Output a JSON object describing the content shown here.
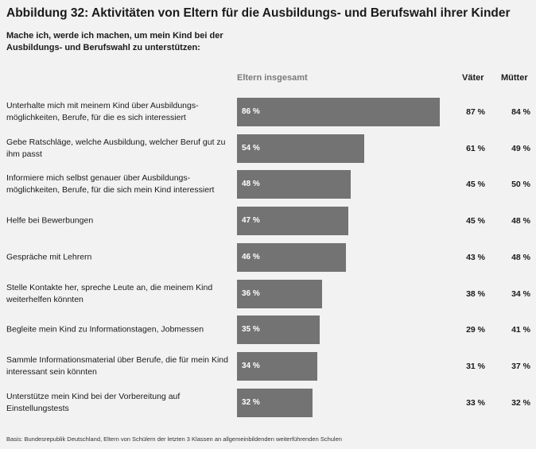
{
  "title": "Abbildung 32: Aktivitäten von Eltern für die Ausbildungs- und Berufswahl ihrer Kinder",
  "subtitle": "Mache ich, werde ich machen, um mein Kind bei der Ausbildungs- und Berufswahl zu unterstützen:",
  "columns": {
    "total": "Eltern insgesamt",
    "fathers": "Väter",
    "mothers": "Mütter"
  },
  "footnote": "Basis: Bundesrepublik Deutschland, Eltern von Schülern der letzten 3 Klassen an allgemeinbildenden weiterführenden Schulen",
  "chart_data": {
    "type": "bar",
    "orientation": "horizontal",
    "unit": "%",
    "categories": [
      "Unterhalte mich mit meinem Kind über Ausbildungs- möglichkeiten, Berufe, für die es sich interessiert",
      "Gebe Ratschläge, welche Ausbildung, welcher Beruf gut zu ihm passt",
      "Informiere mich selbst genauer über Ausbildungs- möglichkeiten, Berufe, für die sich mein Kind interessiert",
      "Helfe bei Bewerbungen",
      "Gespräche mit Lehrern",
      "Stelle Kontakte her, spreche Leute an, die meinem Kind weiterhelfen könnten",
      "Begleite mein Kind zu Informationstagen, Jobmessen",
      "Sammle Informationsmaterial über Berufe, die für mein Kind interessant sein könnten",
      "Unterstütze mein Kind bei der Vorbereitung auf Einstellungstests"
    ],
    "series": [
      {
        "name": "Eltern insgesamt",
        "values": [
          86,
          54,
          48,
          47,
          46,
          36,
          35,
          34,
          32
        ]
      },
      {
        "name": "Väter",
        "values": [
          87,
          61,
          45,
          45,
          43,
          38,
          29,
          31,
          33
        ]
      },
      {
        "name": "Mütter",
        "values": [
          84,
          49,
          50,
          48,
          48,
          34,
          41,
          37,
          32
        ]
      }
    ],
    "labels": {
      "total": [
        "86 %",
        "54 %",
        "48 %",
        "47 %",
        "46 %",
        "36 %",
        "35 %",
        "34 %",
        "32 %"
      ],
      "fathers": [
        "87 %",
        "61 %",
        "45 %",
        "45 %",
        "43 %",
        "38 %",
        "29 %",
        "31 %",
        "33 %"
      ],
      "mothers": [
        "84 %",
        "49 %",
        "50 %",
        "48 %",
        "48 %",
        "34 %",
        "41 %",
        "37 %",
        "32 %"
      ]
    },
    "bar_color": "#737373"
  }
}
